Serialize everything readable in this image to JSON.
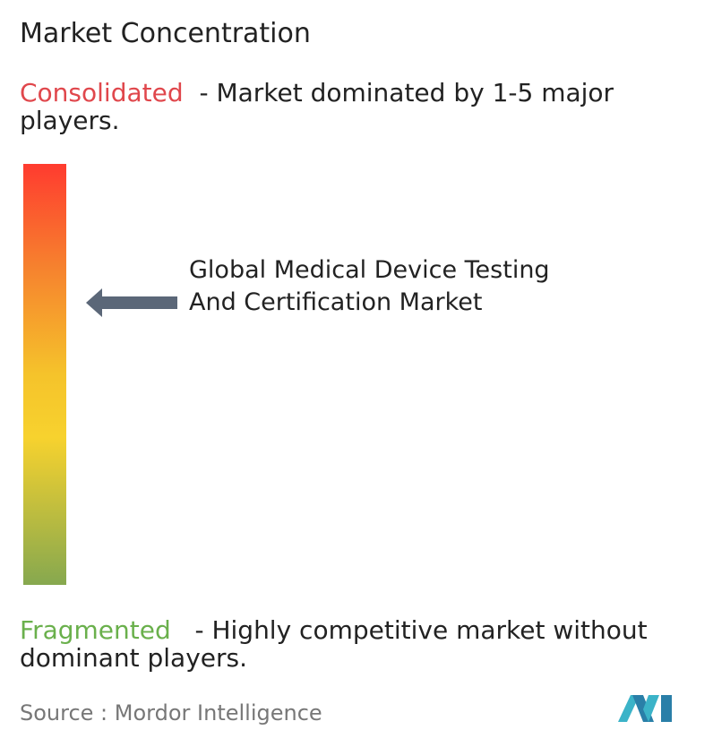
{
  "header": {
    "title": "Market Concentration"
  },
  "consolidated": {
    "label": "Consolidated",
    "description": "- Market dominated by 1-5 major players."
  },
  "marker": {
    "label": "Global Medical Device Testing And Certification Market"
  },
  "fragmented": {
    "label": "Fragmented",
    "description": "- Highly competitive market without dominant players."
  },
  "footer": {
    "source": "Source :  Mordor Intelligence"
  }
}
